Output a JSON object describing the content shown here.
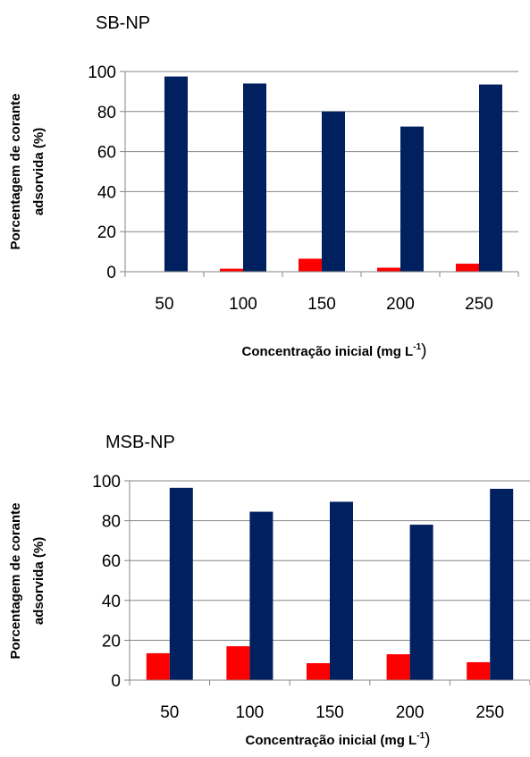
{
  "chart_data": [
    {
      "type": "bar",
      "title": "SB-NP",
      "xlabel": "Concentração inicial (mg L",
      "xlabel_sup": "-1",
      "xlabel_close": ")",
      "ylabel_line1": "Porcentagem de corante",
      "ylabel_line2": "adsorvida (%)",
      "categories": [
        "50",
        "100",
        "150",
        "200",
        "250"
      ],
      "ylim": [
        0,
        100
      ],
      "yticks": [
        0,
        20,
        40,
        60,
        80,
        100
      ],
      "grid": true,
      "legend": "none",
      "series": [
        {
          "color": "#ff0000",
          "values": [
            0,
            1.5,
            6.5,
            2,
            4
          ]
        },
        {
          "color": "#002060",
          "values": [
            97.5,
            94,
            80,
            72.5,
            93.5
          ]
        }
      ]
    },
    {
      "type": "bar",
      "title": "MSB-NP",
      "xlabel": "Concentração inicial (mg L",
      "xlabel_sup": "-1",
      "xlabel_close": ")",
      "ylabel_line1": "Porcentagem de corante",
      "ylabel_line2": "adsorvida (%)",
      "categories": [
        "50",
        "100",
        "150",
        "200",
        "250"
      ],
      "ylim": [
        0,
        100
      ],
      "yticks": [
        0,
        20,
        40,
        60,
        80,
        100
      ],
      "grid": true,
      "legend": "none",
      "series": [
        {
          "color": "#ff0000",
          "values": [
            13.5,
            17,
            8.5,
            13,
            9
          ]
        },
        {
          "color": "#002060",
          "values": [
            96.5,
            84.5,
            89.5,
            78,
            96
          ]
        }
      ]
    }
  ]
}
